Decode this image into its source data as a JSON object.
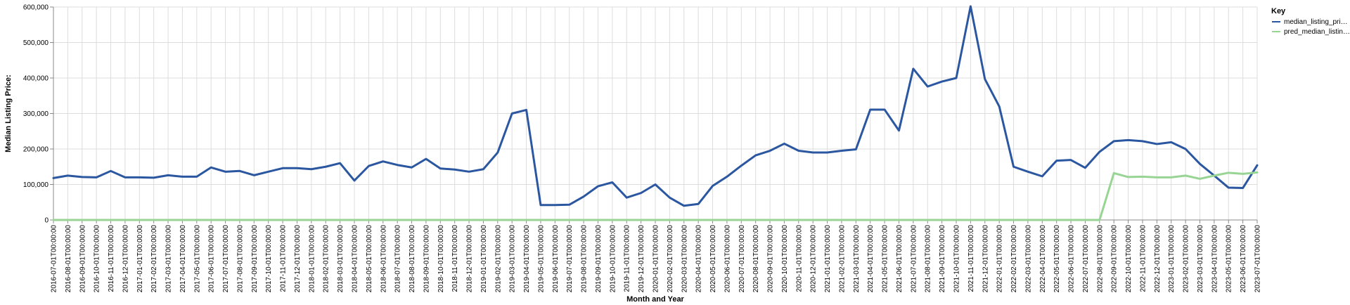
{
  "chart_data": {
    "type": "line",
    "xlabel": "Month and Year",
    "ylabel": "Median Listing Price:",
    "ylim": [
      0,
      600000
    ],
    "yticks": [
      0,
      100000,
      200000,
      300000,
      400000,
      500000,
      600000
    ],
    "ytick_labels": [
      "0",
      "100,000",
      "200,000",
      "300,000",
      "400,000",
      "500,000",
      "600,000"
    ],
    "grid": true,
    "legend": {
      "title": "Key",
      "placement": "top-right"
    },
    "x": [
      "2016-07-01T00:00:00",
      "2016-08-01T00:00:00",
      "2016-09-01T00:00:00",
      "2016-10-01T00:00:00",
      "2016-11-01T00:00:00",
      "2016-12-01T00:00:00",
      "2017-01-01T00:00:00",
      "2017-02-01T00:00:00",
      "2017-03-01T00:00:00",
      "2017-04-01T00:00:00",
      "2017-05-01T00:00:00",
      "2017-06-01T00:00:00",
      "2017-07-01T00:00:00",
      "2017-08-01T00:00:00",
      "2017-09-01T00:00:00",
      "2017-10-01T00:00:00",
      "2017-11-01T00:00:00",
      "2017-12-01T00:00:00",
      "2018-01-01T00:00:00",
      "2018-02-01T00:00:00",
      "2018-03-01T00:00:00",
      "2018-04-01T00:00:00",
      "2018-05-01T00:00:00",
      "2018-06-01T00:00:00",
      "2018-07-01T00:00:00",
      "2018-08-01T00:00:00",
      "2018-09-01T00:00:00",
      "2018-10-01T00:00:00",
      "2018-11-01T00:00:00",
      "2018-12-01T00:00:00",
      "2019-01-01T00:00:00",
      "2019-02-01T00:00:00",
      "2019-03-01T00:00:00",
      "2019-04-01T00:00:00",
      "2019-05-01T00:00:00",
      "2019-06-01T00:00:00",
      "2019-07-01T00:00:00",
      "2019-08-01T00:00:00",
      "2019-09-01T00:00:00",
      "2019-10-01T00:00:00",
      "2019-11-01T00:00:00",
      "2019-12-01T00:00:00",
      "2020-01-01T00:00:00",
      "2020-02-01T00:00:00",
      "2020-03-01T00:00:00",
      "2020-04-01T00:00:00",
      "2020-05-01T00:00:00",
      "2020-06-01T00:00:00",
      "2020-07-01T00:00:00",
      "2020-08-01T00:00:00",
      "2020-09-01T00:00:00",
      "2020-10-01T00:00:00",
      "2020-11-01T00:00:00",
      "2020-12-01T00:00:00",
      "2021-01-01T00:00:00",
      "2021-02-01T00:00:00",
      "2021-03-01T00:00:00",
      "2021-04-01T00:00:00",
      "2021-05-01T00:00:00",
      "2021-06-01T00:00:00",
      "2021-07-01T00:00:00",
      "2021-08-01T00:00:00",
      "2021-09-01T00:00:00",
      "2021-10-01T00:00:00",
      "2021-11-01T00:00:00",
      "2021-12-01T00:00:00",
      "2022-01-01T00:00:00",
      "2022-02-01T00:00:00",
      "2022-03-01T00:00:00",
      "2022-04-01T00:00:00",
      "2022-05-01T00:00:00",
      "2022-06-01T00:00:00",
      "2022-07-01T00:00:00",
      "2022-08-01T00:00:00",
      "2022-09-01T00:00:00",
      "2022-10-01T00:00:00",
      "2022-11-01T00:00:00",
      "2022-12-01T00:00:00",
      "2023-01-01T00:00:00",
      "2023-02-01T00:00:00",
      "2023-03-01T00:00:00",
      "2023-04-01T00:00:00",
      "2023-05-01T00:00:00",
      "2023-06-01T00:00:00",
      "2023-07-01T00:00:00"
    ],
    "series": [
      {
        "name": "median_listing_pri…",
        "color": "#2b57a0",
        "values": [
          118000,
          125000,
          121000,
          120000,
          138000,
          120000,
          120000,
          119000,
          126000,
          122000,
          122000,
          148000,
          136000,
          138000,
          126000,
          136000,
          146000,
          146000,
          143000,
          150000,
          160000,
          111000,
          152000,
          165000,
          155000,
          148000,
          172000,
          145000,
          142000,
          136000,
          143000,
          190000,
          300000,
          310000,
          42000,
          42000,
          43000,
          66000,
          95000,
          106000,
          63000,
          76000,
          100000,
          63000,
          40000,
          45000,
          96000,
          122000,
          153000,
          182000,
          195000,
          215000,
          195000,
          190000,
          190000,
          195000,
          199000,
          311000,
          311000,
          252000,
          426000,
          376000,
          390000,
          400000,
          602000,
          397000,
          320000,
          150000,
          136000,
          123000,
          167000,
          169000,
          147000,
          192000,
          222000,
          225000,
          222000,
          214000,
          219000,
          200000,
          158000,
          125000,
          91000,
          90000,
          154000
        ]
      },
      {
        "name": "pred_median_listin…",
        "color": "#98d594",
        "values": [
          0,
          0,
          0,
          0,
          0,
          0,
          0,
          0,
          0,
          0,
          0,
          0,
          0,
          0,
          0,
          0,
          0,
          0,
          0,
          0,
          0,
          0,
          0,
          0,
          0,
          0,
          0,
          0,
          0,
          0,
          0,
          0,
          0,
          0,
          0,
          0,
          0,
          0,
          0,
          0,
          0,
          0,
          0,
          0,
          0,
          0,
          0,
          0,
          0,
          0,
          0,
          0,
          0,
          0,
          0,
          0,
          0,
          0,
          0,
          0,
          0,
          0,
          0,
          0,
          0,
          0,
          0,
          0,
          0,
          0,
          0,
          0,
          0,
          0,
          132000,
          121000,
          122000,
          120000,
          120000,
          125000,
          116000,
          125000,
          133000,
          130000,
          134000
        ]
      }
    ]
  }
}
